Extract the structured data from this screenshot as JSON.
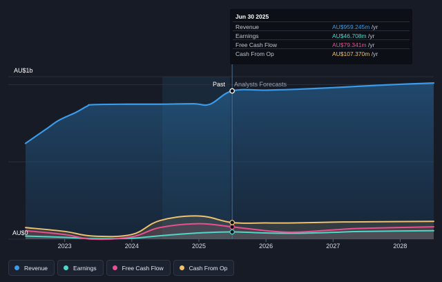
{
  "chart_data": {
    "type": "line",
    "y_axis": {
      "top_label": "AU$1b",
      "bottom_label": "AU$0",
      "ylim": [
        0,
        1100
      ]
    },
    "x_axis": {
      "ticks": [
        "2023",
        "2024",
        "2025",
        "2026",
        "2027",
        "2028"
      ],
      "xlim": [
        "2022-06",
        "2028-07"
      ]
    },
    "divider": {
      "past_label": "Past",
      "forecast_label": "Analysts Forecasts",
      "date": "2025-06-30"
    },
    "series": [
      {
        "name": "Revenue",
        "color": "#3b9be8",
        "fill": true,
        "points": [
          [
            "2022-06",
            620
          ],
          [
            "2022-10",
            720
          ],
          [
            "2022-12",
            770
          ],
          [
            "2023-03",
            820
          ],
          [
            "2023-05",
            860
          ],
          [
            "2023-06",
            870
          ],
          [
            "2023-12",
            873
          ],
          [
            "2024-06",
            873
          ],
          [
            "2024-12",
            876
          ],
          [
            "2025-03",
            873
          ],
          [
            "2025-06-30",
            959
          ],
          [
            "2026-01",
            964
          ],
          [
            "2026-06",
            969
          ],
          [
            "2027-01",
            980
          ],
          [
            "2027-06",
            990
          ],
          [
            "2028-01",
            1002
          ],
          [
            "2028-07",
            1010
          ]
        ]
      },
      {
        "name": "Earnings",
        "color": "#4fd7c9",
        "fill": false,
        "points": [
          [
            "2022-06",
            20
          ],
          [
            "2023-01",
            12
          ],
          [
            "2023-06",
            4
          ],
          [
            "2024-01",
            6
          ],
          [
            "2024-06",
            22
          ],
          [
            "2025-01",
            40
          ],
          [
            "2025-06-30",
            46.7
          ],
          [
            "2026-01",
            40
          ],
          [
            "2026-06",
            38
          ],
          [
            "2027-01",
            44
          ],
          [
            "2027-06",
            50
          ],
          [
            "2028-07",
            55
          ]
        ]
      },
      {
        "name": "Free Cash Flow",
        "color": "#e8508f",
        "fill": false,
        "points": [
          [
            "2022-06",
            55
          ],
          [
            "2023-01",
            30
          ],
          [
            "2023-06",
            0
          ],
          [
            "2024-01",
            15
          ],
          [
            "2024-06",
            75
          ],
          [
            "2025-01",
            100
          ],
          [
            "2025-06-30",
            79.3
          ],
          [
            "2026-01",
            55
          ],
          [
            "2026-06",
            45
          ],
          [
            "2027-01",
            60
          ],
          [
            "2027-06",
            70
          ],
          [
            "2028-07",
            80
          ]
        ]
      },
      {
        "name": "Cash From Op",
        "color": "#f0c26e",
        "fill": false,
        "points": [
          [
            "2022-06",
            75
          ],
          [
            "2023-01",
            50
          ],
          [
            "2023-06",
            20
          ],
          [
            "2024-01",
            30
          ],
          [
            "2024-06",
            120
          ],
          [
            "2025-01",
            150
          ],
          [
            "2025-06-30",
            107.4
          ],
          [
            "2026-01",
            105
          ],
          [
            "2026-06",
            105
          ],
          [
            "2027-01",
            110
          ],
          [
            "2027-06",
            112
          ],
          [
            "2028-07",
            115
          ]
        ]
      }
    ]
  },
  "tooltip": {
    "date": "Jun 30 2025",
    "rows": [
      {
        "name": "Revenue",
        "value": "AU$959.245m",
        "unit": " /yr",
        "color": "#3b9be8"
      },
      {
        "name": "Earnings",
        "value": "AU$46.708m",
        "unit": " /yr",
        "color": "#4fd7c9"
      },
      {
        "name": "Free Cash Flow",
        "value": "AU$79.341m",
        "unit": " /yr",
        "color": "#e8508f"
      },
      {
        "name": "Cash From Op",
        "value": "AU$107.370m",
        "unit": " /yr",
        "color": "#f0c26e"
      }
    ]
  },
  "legend": [
    {
      "label": "Revenue",
      "color": "#3b9be8"
    },
    {
      "label": "Earnings",
      "color": "#4fd7c9"
    },
    {
      "label": "Free Cash Flow",
      "color": "#e8508f"
    },
    {
      "label": "Cash From Op",
      "color": "#f0c26e"
    }
  ]
}
